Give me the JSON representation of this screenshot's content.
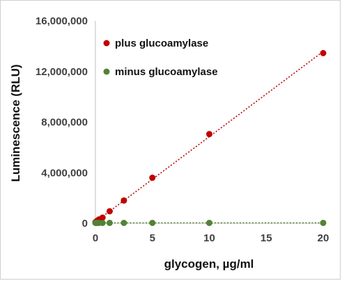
{
  "chart_data": {
    "type": "scatter",
    "title": "",
    "xlabel": "glycogen, µg/ml",
    "ylabel": "Luminescence (RLU)",
    "xlim": [
      0,
      20
    ],
    "ylim": [
      0,
      16000000
    ],
    "xticks": [
      0,
      5,
      10,
      15,
      20
    ],
    "yticks": [
      0,
      4000000,
      8000000,
      12000000,
      16000000
    ],
    "xtick_labels": [
      "0",
      "5",
      "10",
      "15",
      "20"
    ],
    "ytick_labels": [
      "0",
      "4,000,000",
      "8,000,000",
      "12,000,000",
      "16,000,000"
    ],
    "grid": false,
    "legend_position": "top-left",
    "trendline": "linear, dotted",
    "series": [
      {
        "name": "plus glucoamylase",
        "color": "#c00000",
        "x": [
          0,
          0.078,
          0.156,
          0.3125,
          0.625,
          1.25,
          2.5,
          5,
          10,
          20
        ],
        "y": [
          80000,
          120000,
          200000,
          300000,
          450000,
          950000,
          1800000,
          3600000,
          7050000,
          13450000
        ]
      },
      {
        "name": "minus glucoamylase",
        "color": "#548235",
        "x": [
          0,
          0.078,
          0.156,
          0.3125,
          0.625,
          1.25,
          2.5,
          5,
          10,
          20
        ],
        "y": [
          30000,
          30000,
          30000,
          30000,
          30000,
          30000,
          30000,
          30000,
          30000,
          30000
        ]
      }
    ]
  }
}
